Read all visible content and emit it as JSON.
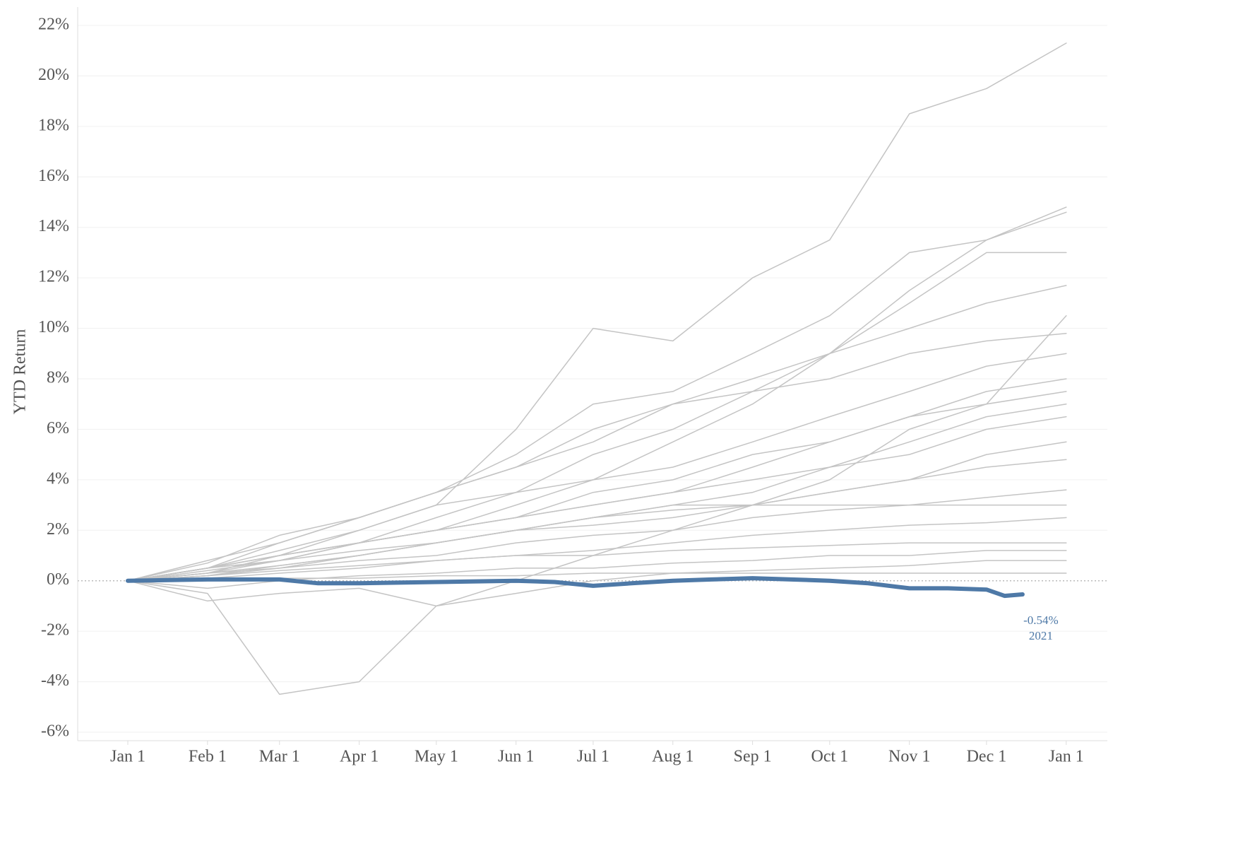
{
  "chart_data": {
    "type": "line",
    "y_label": "YTD Return",
    "xlim": [
      -19.5,
      381
    ],
    "ylim": [
      -6,
      22
    ],
    "xticks": [
      {
        "value": 0,
        "label": "Jan 1"
      },
      {
        "value": 31,
        "label": "Feb 1"
      },
      {
        "value": 59,
        "label": "Mar 1"
      },
      {
        "value": 90,
        "label": "Apr 1"
      },
      {
        "value": 120,
        "label": "May 1"
      },
      {
        "value": 151,
        "label": "Jun 1"
      },
      {
        "value": 181,
        "label": "Jul 1"
      },
      {
        "value": 212,
        "label": "Aug 1"
      },
      {
        "value": 243,
        "label": "Sep 1"
      },
      {
        "value": 273,
        "label": "Oct 1"
      },
      {
        "value": 304,
        "label": "Nov 1"
      },
      {
        "value": 334,
        "label": "Dec 1"
      },
      {
        "value": 365,
        "label": "Jan 1"
      }
    ],
    "yticks": [
      {
        "value": -6,
        "label": "-6%"
      },
      {
        "value": -4,
        "label": "-4%"
      },
      {
        "value": -2,
        "label": "-2%"
      },
      {
        "value": 0,
        "label": "0%"
      },
      {
        "value": 2,
        "label": "2%"
      },
      {
        "value": 4,
        "label": "4%"
      },
      {
        "value": 6,
        "label": "6%"
      },
      {
        "value": 8,
        "label": "8%"
      },
      {
        "value": 10,
        "label": "10%"
      },
      {
        "value": 12,
        "label": "12%"
      },
      {
        "value": 14,
        "label": "14%"
      },
      {
        "value": 16,
        "label": "16%"
      },
      {
        "value": 18,
        "label": "18%"
      },
      {
        "value": 20,
        "label": "20%"
      },
      {
        "value": 22,
        "label": "22%"
      }
    ],
    "grid": true,
    "x": [
      0,
      31,
      59,
      90,
      120,
      151,
      181,
      212,
      243,
      273,
      304,
      334,
      365
    ],
    "series": [
      {
        "color": "#c4c4c4",
        "values": [
          0,
          0.5,
          1,
          2,
          3,
          6,
          10,
          9.5,
          12,
          13.5,
          18.5,
          19.5,
          21.3
        ]
      },
      {
        "color": "#c4c4c4",
        "values": [
          0,
          0.8,
          1.5,
          2.5,
          3.5,
          5,
          7,
          7.5,
          9,
          10.5,
          13,
          13.5,
          14.8
        ]
      },
      {
        "color": "#c4c4c4",
        "values": [
          0,
          0.5,
          1,
          1.5,
          2.5,
          3.5,
          5,
          6,
          7.5,
          9,
          11.5,
          13.5,
          14.6
        ]
      },
      {
        "color": "#c4c4c4",
        "values": [
          0,
          0.3,
          0.8,
          1.5,
          2,
          3,
          4,
          5.5,
          7,
          9,
          11,
          13,
          13
        ]
      },
      {
        "color": "#c4c4c4",
        "values": [
          0,
          0.5,
          1.5,
          2.5,
          3.5,
          4.5,
          6,
          7,
          8,
          9,
          10,
          11,
          11.7
        ]
      },
      {
        "color": "#c4c4c4",
        "values": [
          0,
          -0.5,
          -4.5,
          -4,
          -1,
          0,
          1,
          2,
          3,
          4,
          6,
          7,
          10.5
        ]
      },
      {
        "color": "#c4c4c4",
        "values": [
          0,
          0.7,
          1.8,
          2.5,
          3.5,
          4.5,
          5.5,
          7,
          7.5,
          8,
          9,
          9.5,
          9.8
        ]
      },
      {
        "color": "#c4c4c4",
        "values": [
          0,
          0.5,
          1.2,
          2,
          3,
          3.5,
          4,
          4.5,
          5.5,
          6.5,
          7.5,
          8.5,
          9
        ]
      },
      {
        "color": "#c4c4c4",
        "values": [
          0,
          0.3,
          1,
          1.5,
          2,
          2.5,
          3,
          3.5,
          4.5,
          5.5,
          6.5,
          7.5,
          8
        ]
      },
      {
        "color": "#c4c4c4",
        "values": [
          0,
          0.4,
          0.8,
          1.5,
          2,
          2.5,
          3.5,
          4,
          5,
          5.5,
          6.5,
          7,
          7.5
        ]
      },
      {
        "color": "#c4c4c4",
        "values": [
          0,
          0.2,
          0.6,
          1,
          1.5,
          2,
          2.5,
          3,
          3.5,
          4.5,
          5.5,
          6.5,
          7
        ]
      },
      {
        "color": "#c4c4c4",
        "values": [
          0,
          0.5,
          1,
          1.5,
          2,
          2.5,
          3,
          3.5,
          4,
          4.5,
          5,
          6,
          6.5
        ]
      },
      {
        "color": "#c4c4c4",
        "values": [
          0,
          0.3,
          0.5,
          1,
          1.5,
          2,
          2.5,
          2.8,
          3,
          3.5,
          4,
          5,
          5.5
        ]
      },
      {
        "color": "#c4c4c4",
        "values": [
          0,
          0.5,
          0.8,
          1.2,
          1.5,
          2,
          2.2,
          2.5,
          3,
          3.5,
          4,
          4.5,
          4.8
        ]
      },
      {
        "color": "#c4c4c4",
        "values": [
          0,
          0.2,
          0.5,
          0.8,
          1,
          1.5,
          1.8,
          2,
          2.5,
          2.8,
          3,
          3.3,
          3.6
        ]
      },
      {
        "color": "#c4c4c4",
        "values": [
          0,
          0.3,
          0.6,
          1,
          1.5,
          2,
          2.5,
          3,
          3,
          3,
          3,
          3,
          3
        ]
      },
      {
        "color": "#c4c4c4",
        "values": [
          0,
          0.1,
          0.3,
          0.5,
          0.8,
          1,
          1.2,
          1.5,
          1.8,
          2,
          2.2,
          2.3,
          2.5
        ]
      },
      {
        "color": "#c4c4c4",
        "values": [
          0,
          0.2,
          0.4,
          0.6,
          0.8,
          1,
          1,
          1.2,
          1.3,
          1.4,
          1.5,
          1.5,
          1.5
        ]
      },
      {
        "color": "#c4c4c4",
        "values": [
          0,
          -0.3,
          0,
          0.2,
          0.3,
          0.5,
          0.5,
          0.7,
          0.8,
          1,
          1,
          1.2,
          1.2
        ]
      },
      {
        "color": "#c4c4c4",
        "values": [
          0,
          -0.8,
          -0.5,
          -0.3,
          -1,
          -0.5,
          0,
          0.3,
          0.4,
          0.5,
          0.6,
          0.8,
          0.8
        ]
      },
      {
        "color": "#c4c4c4",
        "values": [
          0,
          0,
          0.1,
          0.1,
          0.2,
          0.2,
          0.3,
          0.3,
          0.3,
          0.3,
          0.3,
          0.3,
          0.3
        ]
      },
      {
        "name": "2021",
        "color": "#4e79a7",
        "highlight": true,
        "x": [
          0,
          31,
          59,
          74,
          90,
          120,
          151,
          166,
          181,
          196,
          212,
          227,
          243,
          258,
          273,
          288,
          304,
          319,
          334,
          341,
          348
        ],
        "values": [
          0,
          0.05,
          0.05,
          -0.1,
          -0.1,
          -0.05,
          0,
          -0.05,
          -0.2,
          -0.1,
          0,
          0.05,
          0.1,
          0.05,
          0,
          -0.1,
          -0.3,
          -0.3,
          -0.35,
          -0.6,
          -0.54
        ],
        "value_labels": [
          null,
          null,
          null,
          null,
          null,
          null,
          null,
          null,
          null,
          null,
          null,
          null,
          null,
          null,
          null,
          null,
          null,
          null,
          null,
          null,
          "-0.54%"
        ]
      }
    ]
  }
}
